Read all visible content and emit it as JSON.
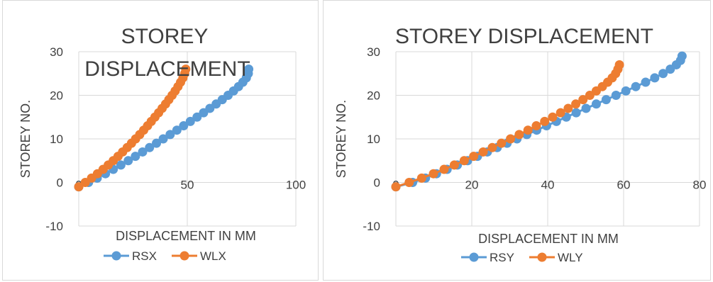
{
  "chart_data": [
    {
      "type": "scatter",
      "title_lines": [
        "STOREY",
        "DISPLACEMENT"
      ],
      "xlabel": "DISPLACEMENT IN MM",
      "ylabel": "STOREY NO.",
      "xlim": [
        0,
        100
      ],
      "ylim": [
        -10,
        30
      ],
      "xticks": [
        "0",
        "50",
        "100"
      ],
      "yticks": [
        "-10",
        "0",
        "10",
        "20",
        "30"
      ],
      "grid": true,
      "legend_position": "bottom",
      "colors": {
        "RSX": "#5b9bd5",
        "WLX": "#ed7d31"
      },
      "series": [
        {
          "name": "RSX",
          "x": [
            0,
            4.5,
            8.5,
            12.3,
            15.9,
            19.4,
            22.8,
            26.1,
            29.4,
            32.6,
            35.8,
            38.9,
            42.1,
            45.2,
            48.3,
            51.4,
            54.5,
            57.5,
            60.4,
            63.3,
            66.1,
            68.8,
            71.3,
            73.6,
            75.6,
            77.2,
            78.1,
            78.3
          ],
          "y": [
            -1,
            0,
            1,
            2,
            3,
            4,
            5,
            6,
            7,
            8,
            9,
            10,
            11,
            12,
            13,
            14,
            15,
            16,
            17,
            18,
            19,
            20,
            21,
            22,
            23,
            24,
            25,
            26
          ]
        },
        {
          "name": "WLX",
          "x": [
            0,
            3,
            5.9,
            8.6,
            11.2,
            13.6,
            15.9,
            18.1,
            20.2,
            22.3,
            24.3,
            26.2,
            28.1,
            29.9,
            31.7,
            33.4,
            35.1,
            36.8,
            38.4,
            40,
            41.5,
            43,
            44.4,
            45.7,
            46.9,
            48,
            48.8,
            49.3
          ],
          "y": [
            -1,
            0,
            1,
            2,
            3,
            4,
            5,
            6,
            7,
            8,
            9,
            10,
            11,
            12,
            13,
            14,
            15,
            16,
            17,
            18,
            19,
            20,
            21,
            22,
            23,
            24,
            25,
            26
          ]
        }
      ]
    },
    {
      "type": "scatter",
      "title_lines": [
        "STOREY DISPLACEMENT"
      ],
      "xlabel": "DISPLACEMENT IN MM",
      "ylabel": "STOREY NO.",
      "xlim": [
        0,
        80
      ],
      "ylim": [
        -10,
        30
      ],
      "xticks": [
        "0",
        "20",
        "40",
        "60",
        "80"
      ],
      "yticks": [
        "-10",
        "0",
        "10",
        "20",
        "30"
      ],
      "grid": true,
      "legend_position": "bottom",
      "colors": {
        "RSY": "#5b9bd5",
        "WLY": "#ed7d31"
      },
      "series": [
        {
          "name": "RSY",
          "x": [
            0,
            4.4,
            7.8,
            10.7,
            13.5,
            16.2,
            18.9,
            21.5,
            24.1,
            26.7,
            29.3,
            31.9,
            34.5,
            37.1,
            39.7,
            42.3,
            44.9,
            47.5,
            50.1,
            52.8,
            55.4,
            58,
            60.6,
            63.2,
            65.8,
            68.2,
            70.4,
            72.3,
            73.9,
            75,
            75.4
          ],
          "y": [
            -1,
            0,
            1,
            2,
            3,
            4,
            5,
            6,
            7,
            8,
            9,
            10,
            11,
            12,
            13,
            14,
            15,
            16,
            17,
            18,
            19,
            20,
            21,
            22,
            23,
            24,
            25,
            26,
            27,
            28,
            29
          ]
        },
        {
          "name": "WLY",
          "x": [
            0,
            3.5,
            6.8,
            9.9,
            12.7,
            15.4,
            18,
            20.5,
            23,
            25.4,
            27.8,
            30.2,
            32.5,
            34.8,
            37,
            39.2,
            41.3,
            43.4,
            45.4,
            47.4,
            49.3,
            51.1,
            52.8,
            54.4,
            55.8,
            57,
            57.9,
            58.5,
            58.9
          ],
          "y": [
            -1,
            0,
            1,
            2,
            3,
            4,
            5,
            6,
            7,
            8,
            9,
            10,
            11,
            12,
            13,
            14,
            15,
            16,
            17,
            18,
            19,
            20,
            21,
            22,
            23,
            24,
            25,
            26,
            27
          ]
        }
      ]
    }
  ]
}
